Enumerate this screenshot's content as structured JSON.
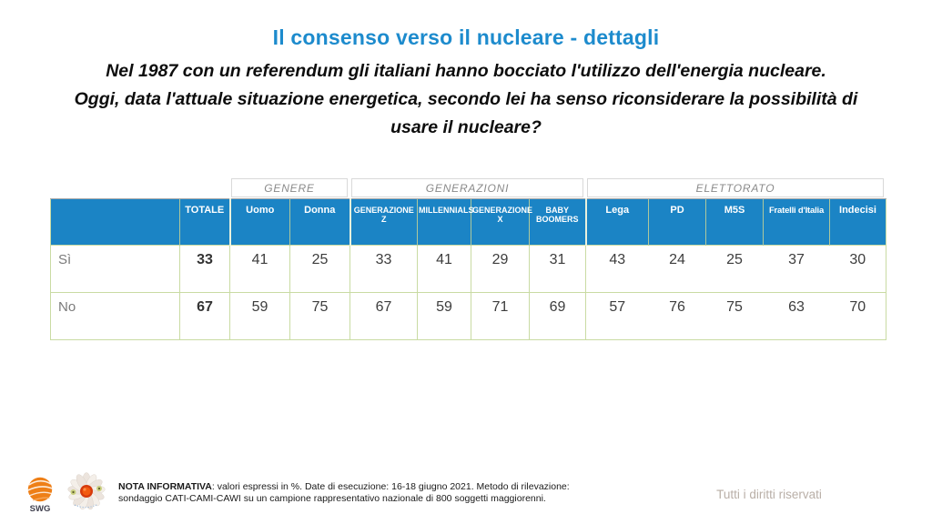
{
  "header": {
    "title": "Il consenso verso il nucleare - dettagli",
    "subtitle_lines": [
      "Nel 1987 con un referendum gli italiani hanno bocciato l'utilizzo dell'energia nucleare.",
      "Oggi, data l'attuale situazione energetica, secondo lei ha senso riconsiderare la possibilità di",
      "usare il nucleare?"
    ]
  },
  "table": {
    "groups": [
      {
        "label": "GENERE",
        "cols": 2
      },
      {
        "label": "GENERAZIONI",
        "cols": 4
      },
      {
        "label": "ELETTORATO",
        "cols": 5
      }
    ],
    "columns": [
      "TOTALE",
      "Uomo",
      "Donna",
      "GENERAZIONE Z",
      "MILLENNIALS",
      "GENERAZIONE X",
      "BABY BOOMERS",
      "Lega",
      "PD",
      "M5S",
      "Fratelli d'Italia",
      "Indecisi"
    ],
    "rows": [
      {
        "label": "Sì",
        "values": [
          33,
          41,
          25,
          33,
          41,
          29,
          31,
          43,
          24,
          25,
          37,
          30
        ]
      },
      {
        "label": "No",
        "values": [
          67,
          59,
          75,
          67,
          59,
          71,
          69,
          57,
          76,
          75,
          63,
          70
        ]
      }
    ]
  },
  "chart_data": {
    "type": "table",
    "title": "Il consenso verso il nucleare - dettagli",
    "question": "Nel 1987 con un referendum gli italiani hanno bocciato l'utilizzo dell'energia nucleare. Oggi, data l'attuale situazione energetica, secondo lei ha senso riconsiderare la possibilità di usare il nucleare?",
    "units": "%",
    "column_groups": [
      {
        "label": "GENERE",
        "columns": [
          "Uomo",
          "Donna"
        ]
      },
      {
        "label": "GENERAZIONI",
        "columns": [
          "GENERAZIONE Z",
          "MILLENNIALS",
          "GENERAZIONE X",
          "BABY BOOMERS"
        ]
      },
      {
        "label": "ELETTORATO",
        "columns": [
          "Lega",
          "PD",
          "M5S",
          "Fratelli d'Italia",
          "Indecisi"
        ]
      }
    ],
    "columns": [
      "TOTALE",
      "Uomo",
      "Donna",
      "GENERAZIONE Z",
      "MILLENNIALS",
      "GENERAZIONE X",
      "BABY BOOMERS",
      "Lega",
      "PD",
      "M5S",
      "Fratelli d'Italia",
      "Indecisi"
    ],
    "rows": [
      {
        "label": "Sì",
        "values": [
          33,
          41,
          25,
          33,
          41,
          29,
          31,
          43,
          24,
          25,
          37,
          30
        ]
      },
      {
        "label": "No",
        "values": [
          67,
          59,
          75,
          67,
          59,
          71,
          69,
          57,
          76,
          75,
          63,
          70
        ]
      }
    ]
  },
  "footer": {
    "swg_label": "SWG",
    "note_bold": "NOTA INFORMATIVA",
    "note_rest": ": valori espressi in %. Date di esecuzione: 16-18 giugno 2021. Metodo di rilevazione: sondaggio CATI-CAMI-CAWI su un campione rappresentativo nazionale di 800 soggetti maggiorenni.",
    "rights": "Tutti i diritti riservati"
  },
  "colors": {
    "header_blue": "#1b84c5",
    "title_blue": "#1d8bcd",
    "grid_green": "#c9dba3"
  }
}
